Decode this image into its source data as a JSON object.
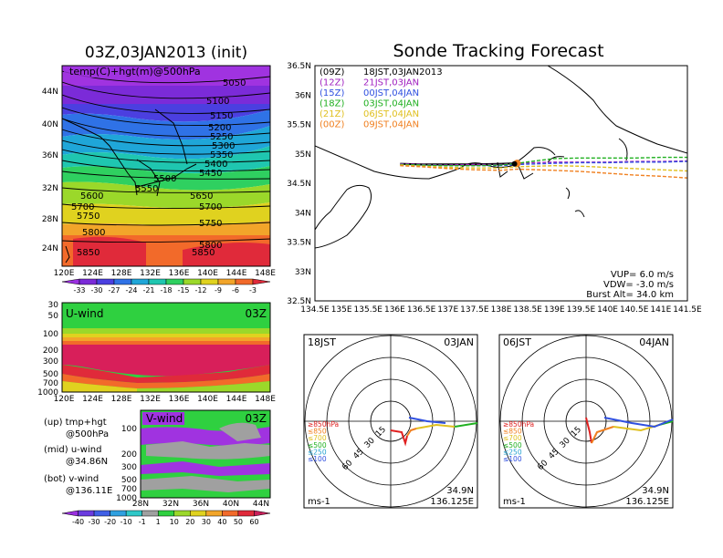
{
  "left_panel": {
    "title": "03Z,03JAN2013 (init)",
    "map_label": "temp(C)+hgt(m)@500hPa",
    "lat_ticks": [
      "24N",
      "28N",
      "32N",
      "36N",
      "40N",
      "44N"
    ],
    "lon_ticks": [
      "120E",
      "124E",
      "128E",
      "132E",
      "136E",
      "140E",
      "144E",
      "148E"
    ],
    "contours": [
      "5050",
      "5100",
      "5150",
      "5200",
      "5250",
      "5300",
      "5350",
      "5400",
      "5450",
      "5500",
      "5550",
      "5600",
      "5650",
      "5700",
      "5700",
      "5750",
      "5750",
      "5800",
      "5800",
      "5850",
      "5850"
    ],
    "temp_colorbar": {
      "labels": [
        "-33",
        "-30",
        "-27",
        "-24",
        "-21",
        "-18",
        "-15",
        "-12",
        "-9",
        "-6",
        "-3"
      ],
      "colors": [
        "#9a2fe0",
        "#7b2bd8",
        "#4b3fe0",
        "#2f72e6",
        "#1fa6d8",
        "#1fc6b0",
        "#2fd060",
        "#9bd82a",
        "#e0d21f",
        "#f2a52a",
        "#f26a2a",
        "#e02a3a"
      ]
    },
    "uwind": {
      "label": "U-wind",
      "time": "03Z",
      "p_ticks": [
        "30",
        "50",
        "100",
        "200",
        "300",
        "500",
        "700",
        "1000"
      ],
      "lon_ticks": [
        "120E",
        "124E",
        "128E",
        "132E",
        "136E",
        "140E",
        "144E",
        "148E"
      ]
    },
    "vwind": {
      "label": "V-wind",
      "time": "03Z",
      "p_ticks": [
        "100",
        "200",
        "300",
        "500",
        "700",
        "1000"
      ],
      "lat_ticks": [
        "28N",
        "32N",
        "36N",
        "40N",
        "44N"
      ]
    },
    "legend_notes": [
      {
        "a": "(up) tmp+hgt",
        "b": "@500hPa"
      },
      {
        "a": "(mid) u-wind",
        "b": "@34.86N"
      },
      {
        "a": "(bot) v-wind",
        "b": "@136.11E"
      }
    ],
    "wind_colorbar": {
      "labels": [
        "-40",
        "-30",
        "-20",
        "-10",
        "-1",
        "1",
        "10",
        "20",
        "30",
        "40",
        "50",
        "60"
      ],
      "colors": [
        "#9a2fe0",
        "#6b3be0",
        "#3f5fe6",
        "#2fa0e0",
        "#2fc8c8",
        "#a0a0a0",
        "#2fd040",
        "#9bd82a",
        "#e0d21f",
        "#f2a52a",
        "#f26a2a",
        "#e02a3a",
        "#c81f5a"
      ]
    }
  },
  "right_panel": {
    "title": "Sonde Tracking Forecast",
    "lat_ticks": [
      "32.5N",
      "33N",
      "33.5N",
      "34N",
      "34.5N",
      "35N",
      "35.5N",
      "36N",
      "36.5N"
    ],
    "lon_ticks": [
      "134.5E",
      "135E",
      "135.5E",
      "136E",
      "136.5E",
      "137E",
      "137.5E",
      "138E",
      "138.5E",
      "139E",
      "139.5E",
      "140E",
      "140.5E",
      "141E",
      "141.5E"
    ],
    "legend": [
      {
        "tag": "(09Z)",
        "text": "18JST,03JAN2013",
        "color": "#000000"
      },
      {
        "tag": "(12Z)",
        "text": "21JST,03JAN",
        "color": "#a020c0"
      },
      {
        "tag": "(15Z)",
        "text": "00JST,04JAN",
        "color": "#3050e0"
      },
      {
        "tag": "(18Z)",
        "text": "03JST,04JAN",
        "color": "#20b020"
      },
      {
        "tag": "(21Z)",
        "text": "06JST,04JAN",
        "color": "#e0c020"
      },
      {
        "tag": "(00Z)",
        "text": "09JST,04JAN",
        "color": "#f08020"
      }
    ],
    "params": [
      "VUP= 6.0 m/s",
      "VDW= -3.0 m/s",
      "Burst Alt= 34.0 km"
    ]
  },
  "hodographs": [
    {
      "jst": "18JST",
      "date": "03JAN",
      "unit": "ms-1",
      "lat": "34.9N",
      "lon": "136.125E",
      "ring_labels": [
        "15",
        "30",
        "45",
        "60"
      ],
      "levels": [
        {
          "text": "≥850hPa",
          "color": "#e02020"
        },
        {
          "text": "≤850",
          "color": "#f08020"
        },
        {
          "text": "≤700",
          "color": "#e0c020"
        },
        {
          "text": "≤500",
          "color": "#20b020"
        },
        {
          "text": "≤250",
          "color": "#20a0d0"
        },
        {
          "text": "≤100",
          "color": "#3050e0"
        }
      ]
    },
    {
      "jst": "06JST",
      "date": "04JAN",
      "unit": "ms-1",
      "lat": "34.9N",
      "lon": "136.125E",
      "ring_labels": [
        "15",
        "30",
        "45",
        "60"
      ],
      "levels": [
        {
          "text": "≥850hPa",
          "color": "#e02020"
        },
        {
          "text": "≤850",
          "color": "#f08020"
        },
        {
          "text": "≤700",
          "color": "#e0c020"
        },
        {
          "text": "≤500",
          "color": "#20b020"
        },
        {
          "text": "≤250",
          "color": "#20a0d0"
        },
        {
          "text": "≤100",
          "color": "#3050e0"
        }
      ]
    }
  ],
  "chart_data": {
    "type": "line",
    "title": "Sonde Tracking Forecast",
    "xlim": [
      134.5,
      141.5
    ],
    "ylim": [
      32.5,
      36.5
    ],
    "series": [
      {
        "name": "(09Z) 18JST,03JAN2013",
        "x": [
          136.1,
          136.5,
          137.0,
          137.5,
          138.0,
          138.3
        ],
        "y": [
          34.83,
          34.82,
          34.82,
          34.82,
          34.83,
          34.84
        ]
      },
      {
        "name": "(12Z) 21JST,03JAN",
        "x": [
          136.1,
          136.5,
          137.0,
          137.5,
          138.0,
          138.3,
          139.0,
          139.5,
          140.0,
          140.5,
          141.0,
          141.5
        ],
        "y": [
          34.83,
          34.82,
          34.81,
          34.82,
          34.82,
          34.84,
          34.86,
          34.86,
          34.86,
          34.87,
          34.87,
          34.88
        ]
      },
      {
        "name": "(15Z) 00JST,04JAN",
        "x": [
          136.1,
          136.5,
          137.0,
          137.5,
          138.0,
          138.3,
          139.0,
          139.5,
          140.0,
          140.5,
          141.0,
          141.5
        ],
        "y": [
          34.82,
          34.81,
          34.8,
          34.8,
          34.8,
          34.82,
          34.84,
          34.85,
          34.85,
          34.86,
          34.86,
          34.87
        ]
      },
      {
        "name": "(18Z) 03JST,04JAN",
        "x": [
          136.1,
          136.5,
          137.0,
          137.5,
          138.0,
          138.3,
          139.0,
          139.5,
          140.0,
          140.5,
          141.0,
          141.5
        ],
        "y": [
          34.82,
          34.81,
          34.8,
          34.8,
          34.81,
          34.84,
          34.92,
          34.93,
          34.93,
          34.93,
          34.94,
          34.94
        ]
      },
      {
        "name": "(21Z) 06JST,04JAN",
        "x": [
          136.1,
          136.5,
          137.0,
          137.5,
          138.0,
          138.3,
          139.0,
          139.5,
          140.0,
          140.5,
          141.0,
          141.5
        ],
        "y": [
          34.81,
          34.79,
          34.77,
          34.76,
          34.76,
          34.78,
          34.8,
          34.79,
          34.77,
          34.75,
          34.73,
          34.71
        ]
      },
      {
        "name": "(00Z) 09JST,04JAN",
        "x": [
          136.1,
          136.5,
          137.0,
          137.5,
          138.0,
          138.3,
          139.0,
          139.5,
          140.0,
          140.5,
          141.0,
          141.5
        ],
        "y": [
          34.8,
          34.78,
          34.75,
          34.73,
          34.72,
          34.74,
          34.72,
          34.7,
          34.67,
          34.64,
          34.62,
          34.59
        ]
      }
    ]
  }
}
